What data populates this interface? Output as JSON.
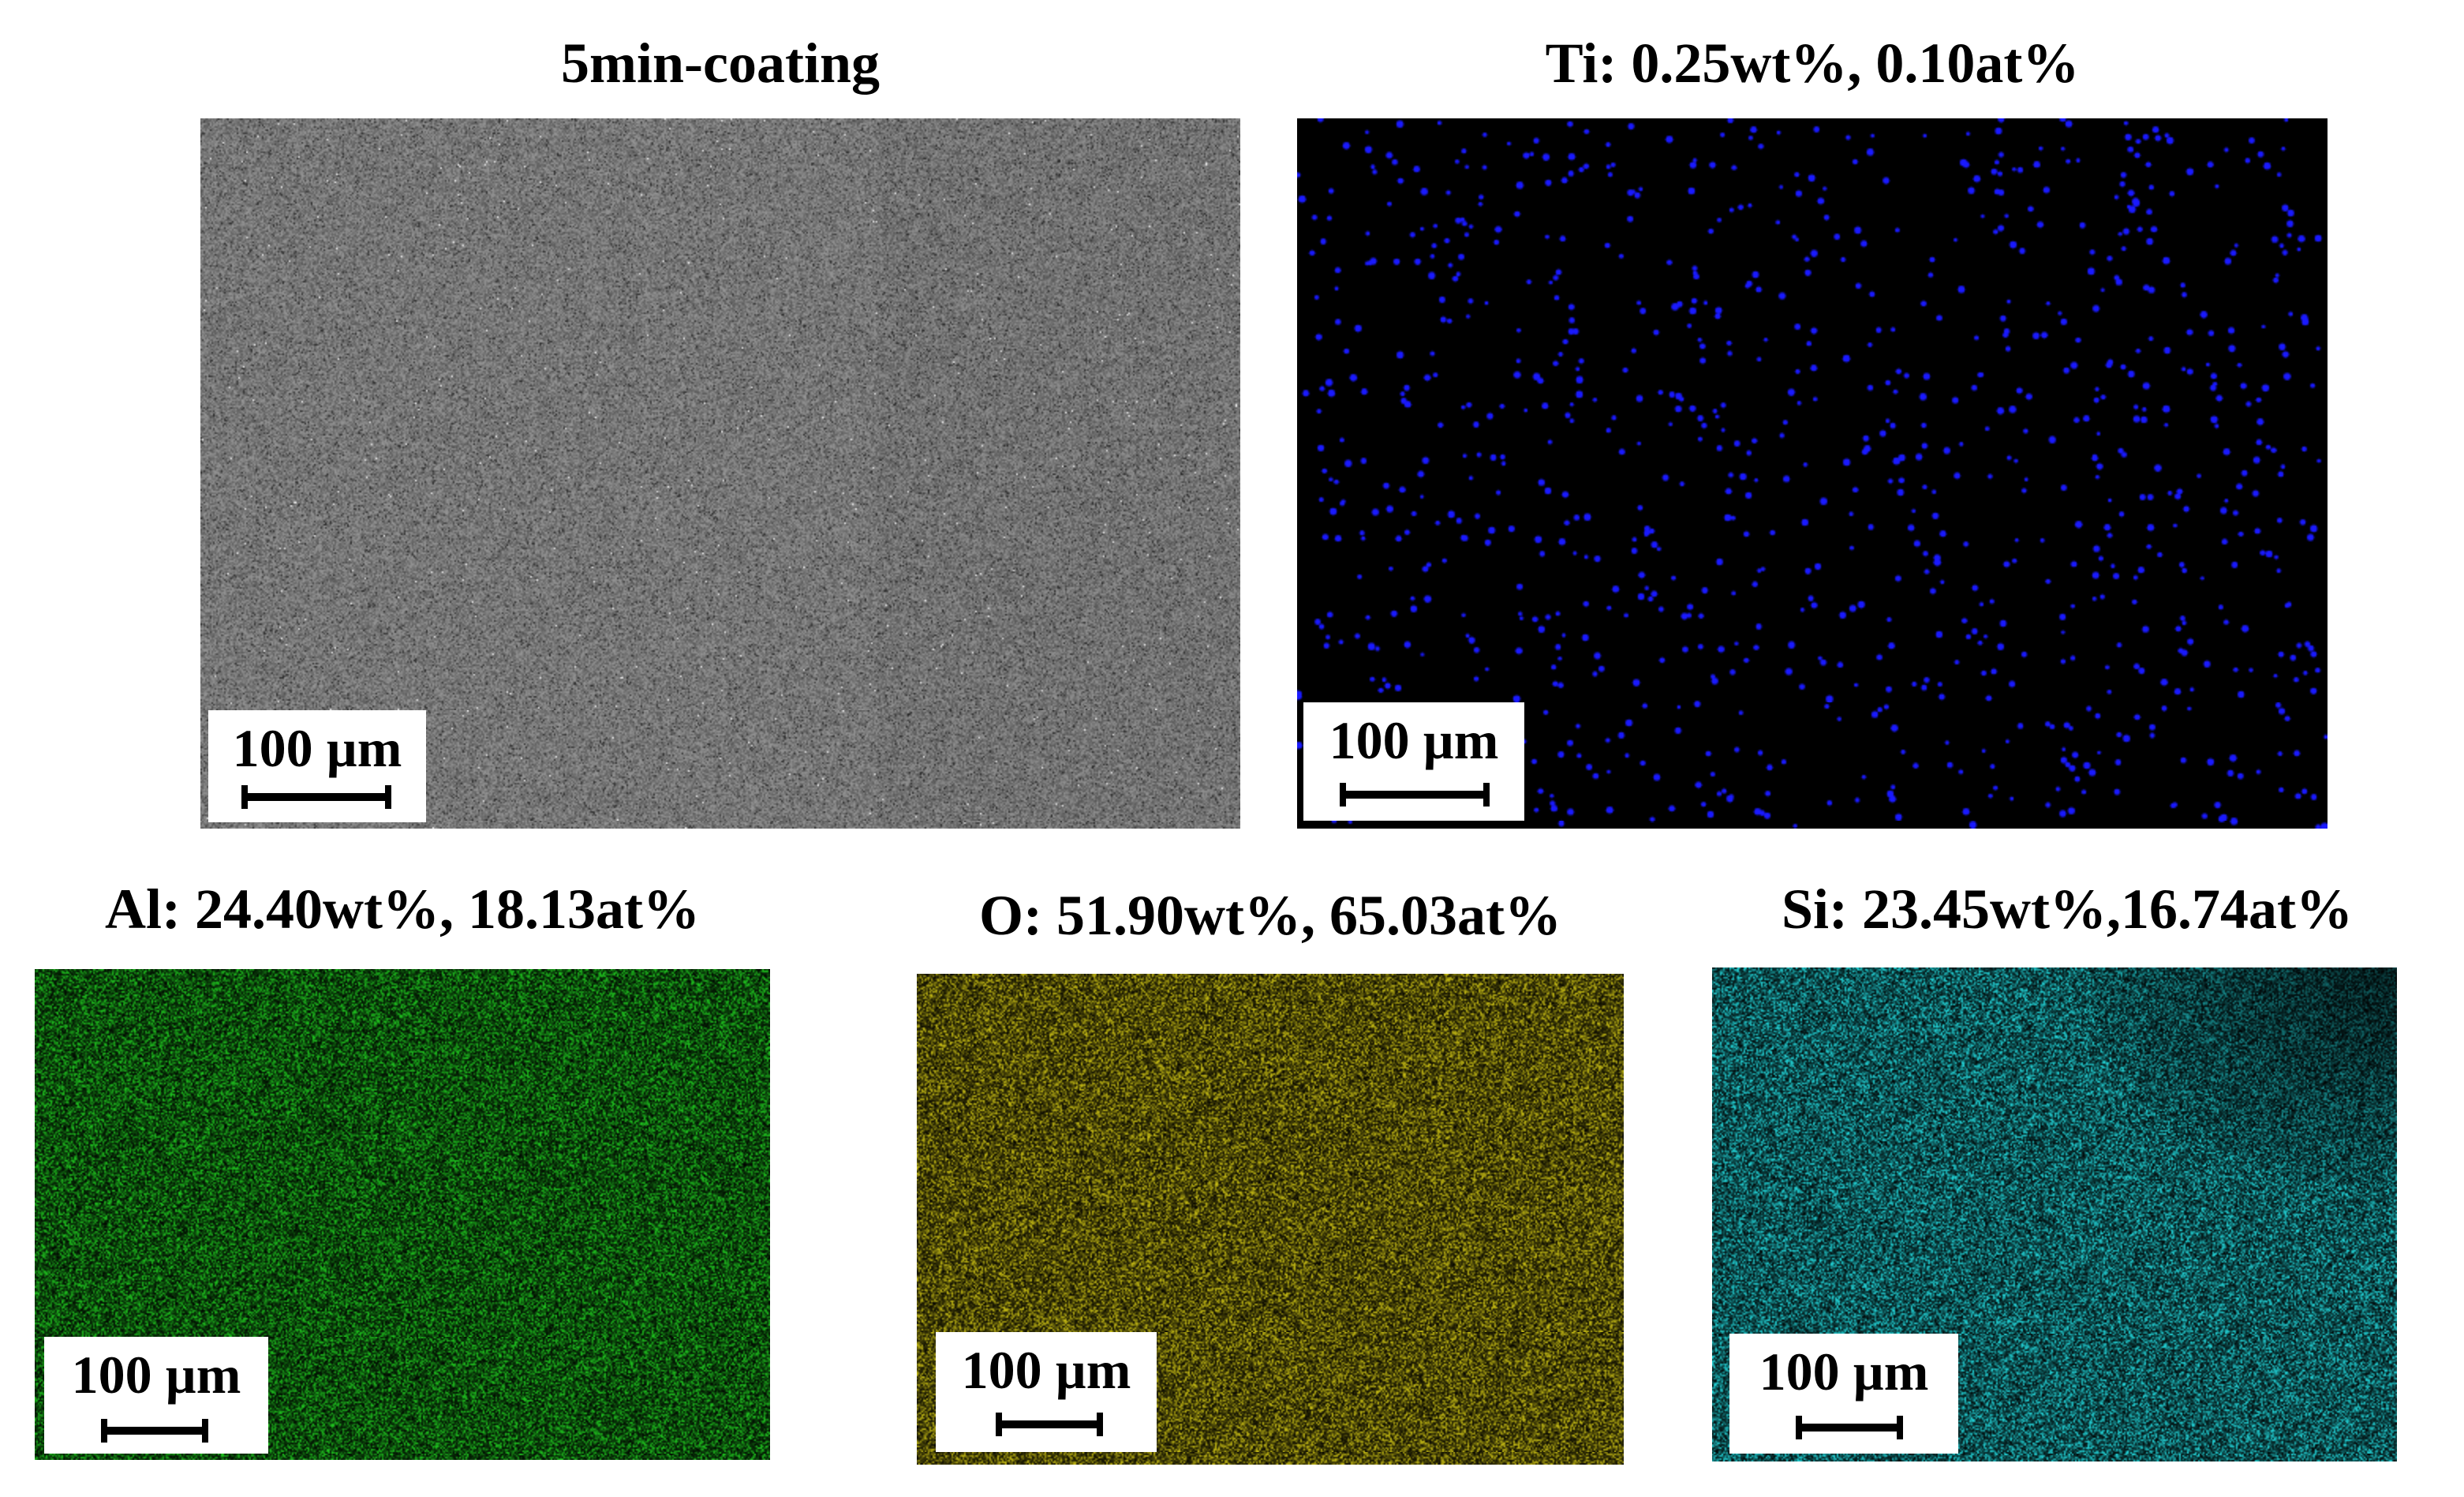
{
  "panels": [
    {
      "id": "sem",
      "title": "5min-coating",
      "scalebar_label": "100 µm",
      "color": "#7a7a7a",
      "map_type": "sem"
    },
    {
      "id": "ti",
      "title": "Ti: 0.25wt%, 0.10at%",
      "scalebar_label": "100 µm",
      "color": "#1a1aff",
      "map_type": "sparse"
    },
    {
      "id": "al",
      "title": "Al: 24.40wt%, 18.13at%",
      "scalebar_label": "100 µm",
      "color": "#1fc21f",
      "map_type": "dense"
    },
    {
      "id": "o",
      "title": "O: 51.90wt%, 65.03at%",
      "scalebar_label": "100 µm",
      "color": "#c2b814",
      "map_type": "dense"
    },
    {
      "id": "si",
      "title": "Si: 23.45wt%,16.74at%",
      "scalebar_label": "100 µm",
      "color": "#22d2d6",
      "map_type": "dense"
    }
  ]
}
